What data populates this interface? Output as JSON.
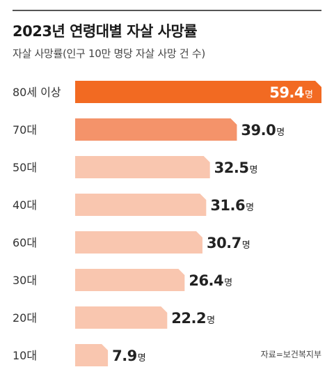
{
  "title": "2023년 연령대별 자살 사망률",
  "subtitle": "자살 사망률(인구 10만 명당 자살 사망 건 수)",
  "source": "자료=보건복지부",
  "colors": {
    "highlight": "#F26A22",
    "second": "#F4936A",
    "base": "#F9C6AF",
    "text": "#222222",
    "highlight_text": "#ffffff"
  },
  "chart_data": {
    "type": "bar",
    "orientation": "horizontal",
    "title": "2023년 연령대별 자살 사망률",
    "subtitle": "자살 사망률(인구 10만 명당 자살 사망 건 수)",
    "unit": "명",
    "categories": [
      "80세 이상",
      "70대",
      "50대",
      "40대",
      "60대",
      "30대",
      "20대",
      "10대"
    ],
    "values": [
      59.4,
      39.0,
      32.5,
      31.6,
      30.7,
      26.4,
      22.2,
      7.9
    ],
    "value_labels": [
      "59.4",
      "39.0",
      "32.5",
      "31.6",
      "30.7",
      "26.4",
      "22.2",
      "7.9"
    ],
    "xlim": [
      0,
      59.4
    ],
    "grid": false,
    "legend": "none"
  }
}
